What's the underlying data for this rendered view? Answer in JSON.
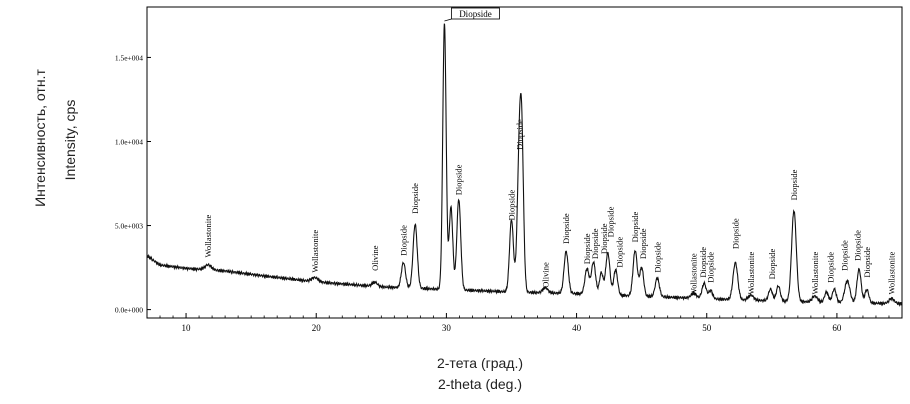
{
  "chart_data": {
    "type": "line",
    "title": "",
    "xlabel": [
      "2-тета (град.)",
      "2-theta (deg.)"
    ],
    "ylabel": [
      "Интенсивность, отн.т",
      "Intensity, cps"
    ],
    "xlim": [
      7,
      65
    ],
    "ylim": [
      -500,
      18000
    ],
    "x_ticks": [
      10,
      20,
      30,
      40,
      50,
      60
    ],
    "y_ticks": [
      {
        "value": 0,
        "label": "0.0e+000"
      },
      {
        "value": 5000,
        "label": "5.0e+003"
      },
      {
        "value": 10000,
        "label": "1.0e+004"
      },
      {
        "value": 15000,
        "label": "1.5e+004"
      }
    ],
    "grid": false,
    "line_color": "#111111",
    "background_profile": [
      [
        7,
        3200
      ],
      [
        8,
        2650
      ],
      [
        10,
        2450
      ],
      [
        13,
        2300
      ],
      [
        16,
        2000
      ],
      [
        20,
        1650
      ],
      [
        25,
        1350
      ],
      [
        30,
        1200
      ],
      [
        35,
        1050
      ],
      [
        40,
        950
      ],
      [
        45,
        800
      ],
      [
        50,
        650
      ],
      [
        55,
        520
      ],
      [
        60,
        420
      ],
      [
        65,
        350
      ]
    ],
    "peaks": [
      {
        "x": 11.7,
        "height": 300,
        "width": 0.25
      },
      {
        "x": 19.9,
        "height": 250,
        "width": 0.25
      },
      {
        "x": 24.5,
        "height": 250,
        "width": 0.2
      },
      {
        "x": 26.7,
        "height": 1500,
        "width": 0.16
      },
      {
        "x": 27.6,
        "height": 3800,
        "width": 0.16
      },
      {
        "x": 29.85,
        "height": 15800,
        "width": 0.13
      },
      {
        "x": 30.35,
        "height": 4900,
        "width": 0.14
      },
      {
        "x": 30.95,
        "height": 5400,
        "width": 0.15
      },
      {
        "x": 35.0,
        "height": 4300,
        "width": 0.15
      },
      {
        "x": 35.6,
        "height": 7600,
        "width": 0.16
      },
      {
        "x": 35.8,
        "height": 7200,
        "width": 0.14
      },
      {
        "x": 37.6,
        "height": 300,
        "width": 0.2
      },
      {
        "x": 39.2,
        "height": 2500,
        "width": 0.16
      },
      {
        "x": 40.8,
        "height": 1500,
        "width": 0.16
      },
      {
        "x": 41.3,
        "height": 1900,
        "width": 0.16
      },
      {
        "x": 41.9,
        "height": 1300,
        "width": 0.14
      },
      {
        "x": 42.4,
        "height": 2500,
        "width": 0.16
      },
      {
        "x": 43.0,
        "height": 1500,
        "width": 0.15
      },
      {
        "x": 44.5,
        "height": 2700,
        "width": 0.16
      },
      {
        "x": 45.0,
        "height": 1700,
        "width": 0.15
      },
      {
        "x": 46.2,
        "height": 1100,
        "width": 0.16
      },
      {
        "x": 49.0,
        "height": 300,
        "width": 0.2
      },
      {
        "x": 49.8,
        "height": 900,
        "width": 0.16
      },
      {
        "x": 50.3,
        "height": 500,
        "width": 0.15
      },
      {
        "x": 52.2,
        "height": 2200,
        "width": 0.18
      },
      {
        "x": 53.4,
        "height": 300,
        "width": 0.2
      },
      {
        "x": 54.9,
        "height": 700,
        "width": 0.15
      },
      {
        "x": 55.5,
        "height": 900,
        "width": 0.15
      },
      {
        "x": 56.7,
        "height": 5400,
        "width": 0.18
      },
      {
        "x": 58.3,
        "height": 350,
        "width": 0.2
      },
      {
        "x": 59.2,
        "height": 600,
        "width": 0.15
      },
      {
        "x": 59.8,
        "height": 800,
        "width": 0.15
      },
      {
        "x": 60.8,
        "height": 1300,
        "width": 0.2
      },
      {
        "x": 61.7,
        "height": 2000,
        "width": 0.16
      },
      {
        "x": 62.3,
        "height": 800,
        "width": 0.15
      },
      {
        "x": 64.2,
        "height": 300,
        "width": 0.2
      }
    ],
    "annotations": [
      {
        "x": 11.7,
        "y": 3100,
        "text": "Wollastonite"
      },
      {
        "x": 19.9,
        "y": 2200,
        "text": "Wollastonite"
      },
      {
        "x": 24.5,
        "y": 2300,
        "text": "Olivine"
      },
      {
        "x": 26.7,
        "y": 3200,
        "text": "Diopside"
      },
      {
        "x": 27.6,
        "y": 5700,
        "text": "Diopside"
      },
      {
        "x": 30.95,
        "y": 6800,
        "text": "Diopside"
      },
      {
        "x": 35.0,
        "y": 5300,
        "text": "Diopside"
      },
      {
        "x": 35.6,
        "y": 9500,
        "text": "Diopside"
      },
      {
        "x": 37.6,
        "y": 1300,
        "text": "Olivine"
      },
      {
        "x": 39.2,
        "y": 3900,
        "text": "Diopside"
      },
      {
        "x": 40.8,
        "y": 2700,
        "text": "Diopside"
      },
      {
        "x": 41.4,
        "y": 3000,
        "text": "Diopside"
      },
      {
        "x": 42.1,
        "y": 3300,
        "text": "Diopside"
      },
      {
        "x": 42.6,
        "y": 4300,
        "text": "Diopside"
      },
      {
        "x": 43.3,
        "y": 2500,
        "text": "Diopside"
      },
      {
        "x": 44.5,
        "y": 4000,
        "text": "Diopside"
      },
      {
        "x": 45.1,
        "y": 3000,
        "text": "Diopside"
      },
      {
        "x": 46.2,
        "y": 2200,
        "text": "Diopside"
      },
      {
        "x": 49.0,
        "y": 800,
        "text": "Wollastonite"
      },
      {
        "x": 49.7,
        "y": 1900,
        "text": "Diopside"
      },
      {
        "x": 50.3,
        "y": 1600,
        "text": "Diopside"
      },
      {
        "x": 52.2,
        "y": 3600,
        "text": "Diopside"
      },
      {
        "x": 53.4,
        "y": 900,
        "text": "Wollastonite"
      },
      {
        "x": 55.0,
        "y": 1800,
        "text": "Diopside"
      },
      {
        "x": 56.7,
        "y": 6500,
        "text": "Diopside"
      },
      {
        "x": 58.3,
        "y": 900,
        "text": "Wollastonite"
      },
      {
        "x": 59.5,
        "y": 1600,
        "text": "Diopside"
      },
      {
        "x": 60.6,
        "y": 2300,
        "text": "Diopside"
      },
      {
        "x": 61.6,
        "y": 2900,
        "text": "Diopside"
      },
      {
        "x": 62.3,
        "y": 1900,
        "text": "Diopside"
      },
      {
        "x": 64.2,
        "y": 900,
        "text": "Wollastonite"
      }
    ],
    "top_annotation": {
      "x": 29.85,
      "text": "Diopside"
    }
  }
}
